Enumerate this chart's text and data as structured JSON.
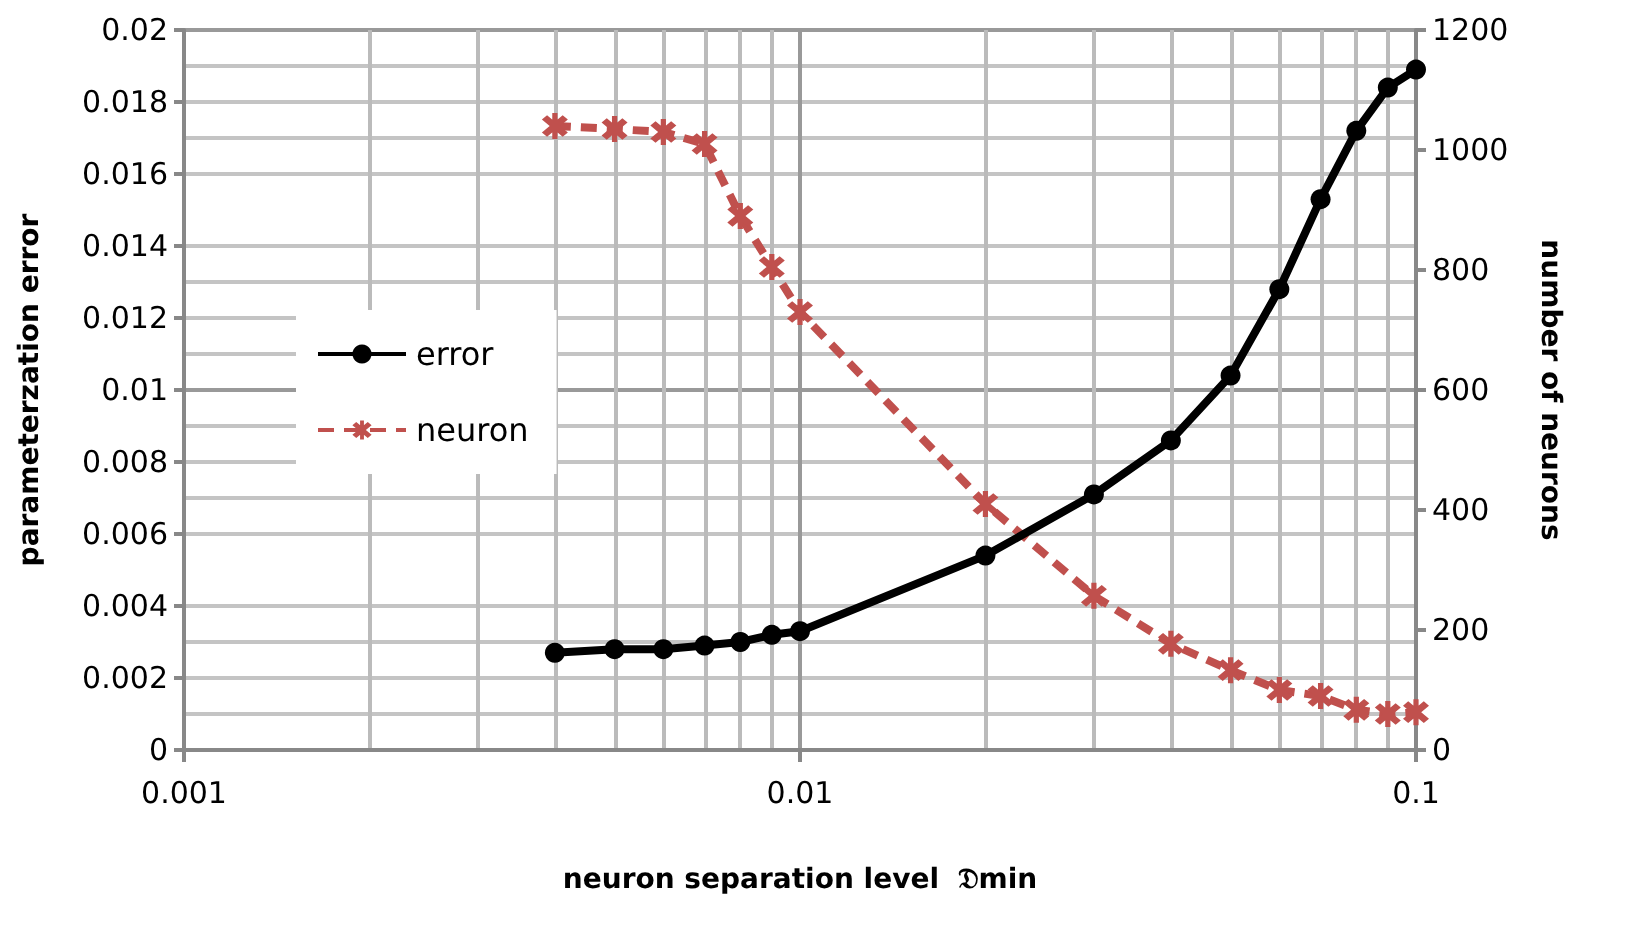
{
  "chart_data": {
    "type": "line",
    "xlabel": "neuron separation level  𝔇min",
    "ylabel": "parameterzation error",
    "y2label": "number of neurons",
    "x": [
      0.004,
      0.005,
      0.006,
      0.007,
      0.008,
      0.009,
      0.01,
      0.02,
      0.03,
      0.04,
      0.05,
      0.06,
      0.07,
      0.08,
      0.09,
      0.1
    ],
    "series": [
      {
        "name": "error",
        "color": "#000000",
        "marker": "circle",
        "line_style": "solid",
        "values": [
          0.0027,
          0.0028,
          0.0028,
          0.0029,
          0.003,
          0.0032,
          0.0033,
          0.0054,
          0.0071,
          0.0086,
          0.0104,
          0.0128,
          0.0153,
          0.0172,
          0.0184,
          0.0189
        ]
      },
      {
        "name": "neuron",
        "color": "#c0504d",
        "marker": "cross",
        "line_style": "dashed",
        "axis": "y2",
        "values": [
          1040,
          1035,
          1030,
          1010,
          890,
          805,
          730,
          410,
          257,
          177,
          133,
          100,
          90,
          67,
          60,
          63
        ]
      }
    ],
    "log": "x",
    "xlim": [
      0.001,
      0.1
    ],
    "xticks": [
      0.001,
      0.01,
      0.1
    ],
    "ylim": [
      0,
      0.02
    ],
    "yticks": [
      0,
      0.002,
      0.004,
      0.006,
      0.008,
      0.01,
      0.012,
      0.014,
      0.016,
      0.018,
      0.02
    ],
    "y2lim": [
      0,
      1200
    ],
    "y2ticks": [
      0,
      200,
      400,
      600,
      800,
      1000,
      1200
    ],
    "grid": true,
    "legend": "left"
  }
}
